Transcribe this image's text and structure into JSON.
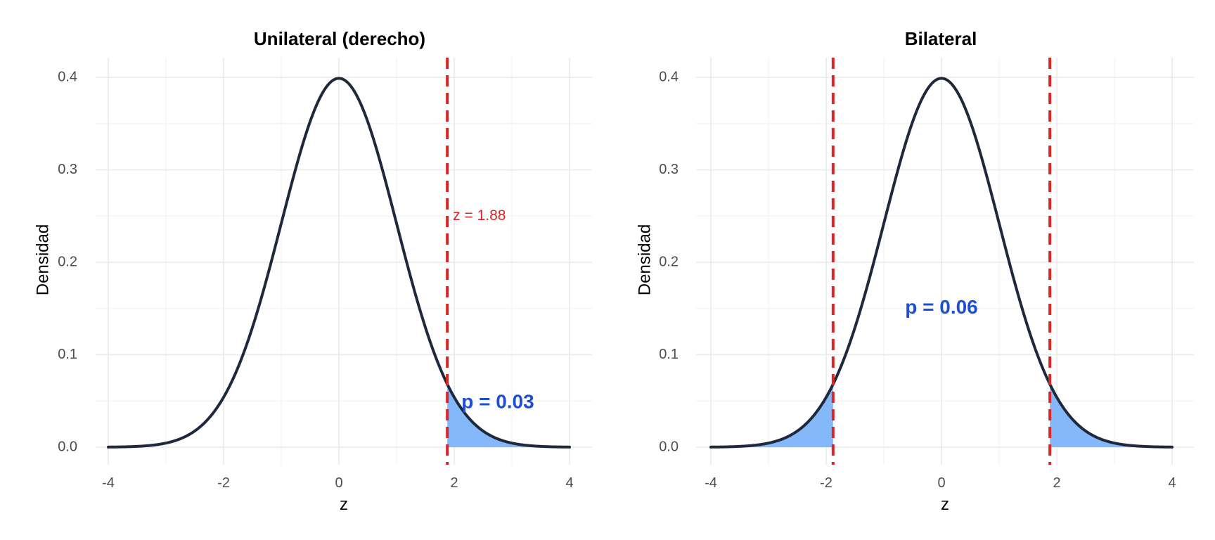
{
  "colors": {
    "curve": "#1e293b",
    "shade": "#84b8f8",
    "critical": "#dc2626",
    "p_text": "#1d4ed8",
    "z_text": "#dc2626"
  },
  "chart_data": [
    {
      "type": "area",
      "title": "Unilateral (derecho)",
      "xlabel": "z",
      "ylabel": "Densidad",
      "xlim": [
        -4,
        4
      ],
      "ylim": [
        0,
        0.4
      ],
      "x_ticks": [
        -4,
        -2,
        0,
        2,
        4
      ],
      "x_tick_labels": [
        "-4",
        "-2",
        "0",
        "2",
        "4"
      ],
      "y_ticks": [
        0,
        0.1,
        0.2,
        0.3,
        0.4
      ],
      "y_tick_labels": [
        "0.0",
        "0.1",
        "0.2",
        "0.3",
        "0.4"
      ],
      "grid": true,
      "curve": "standard normal density",
      "critical_values": [
        1.88
      ],
      "shaded_regions": [
        [
          1.88,
          4
        ]
      ],
      "annotations": [
        {
          "role": "z",
          "text": "z = 1.88",
          "x": 1.88,
          "y": 0.25,
          "anchor": "start"
        },
        {
          "role": "p",
          "text": "p = 0.03",
          "x": 2.1,
          "y": 0.048,
          "anchor": "start"
        }
      ]
    },
    {
      "type": "area",
      "title": "Bilateral",
      "xlabel": "z",
      "ylabel": "Densidad",
      "xlim": [
        -4,
        4
      ],
      "ylim": [
        0,
        0.4
      ],
      "x_ticks": [
        -4,
        -2,
        0,
        2,
        4
      ],
      "x_tick_labels": [
        "-4",
        "-2",
        "0",
        "2",
        "4"
      ],
      "y_ticks": [
        0,
        0.1,
        0.2,
        0.3,
        0.4
      ],
      "y_tick_labels": [
        "0.0",
        "0.1",
        "0.2",
        "0.3",
        "0.4"
      ],
      "grid": true,
      "curve": "standard normal density",
      "critical_values": [
        -1.88,
        1.88
      ],
      "shaded_regions": [
        [
          -4,
          -1.88
        ],
        [
          1.88,
          4
        ]
      ],
      "annotations": [
        {
          "role": "p",
          "text": "p = 0.06",
          "x": 0,
          "y": 0.15,
          "anchor": "middle"
        }
      ]
    }
  ]
}
